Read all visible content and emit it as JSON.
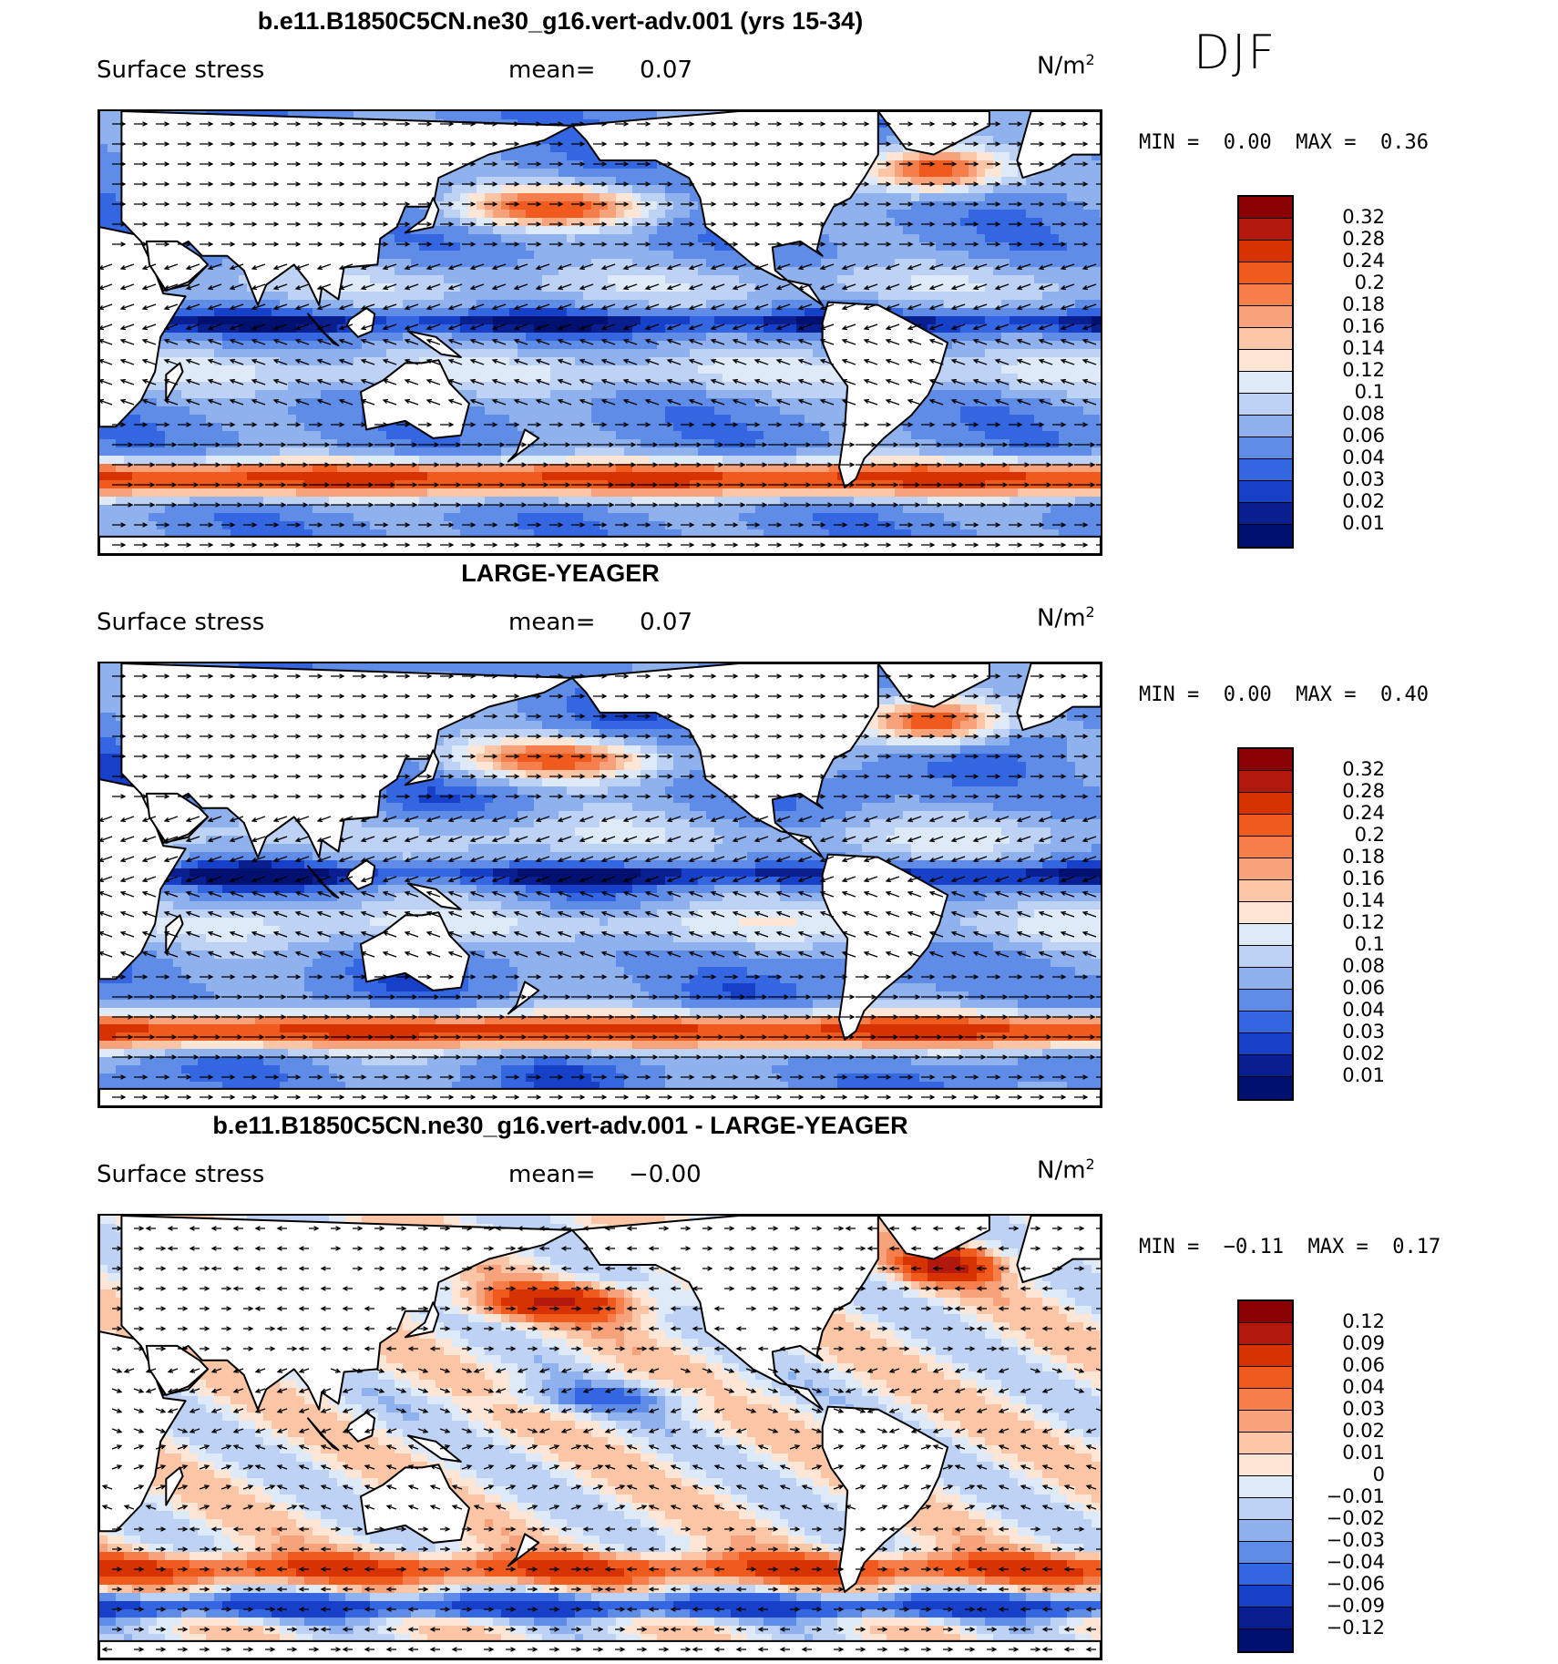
{
  "season_label": "DJF",
  "panels": [
    {
      "title": "b.e11.B1850C5CN.ne30_g16.vert-adv.001 (yrs 15-34)",
      "variable": "Surface stress",
      "mean_label": "mean=",
      "mean_value": "0.07",
      "units_base": "N/m",
      "units_exp": "2",
      "min_label": "MIN =",
      "min_value": "0.00",
      "max_label": "MAX =",
      "max_value": "0.36",
      "field_kind": "abs",
      "levels": [
        "0.32",
        "0.28",
        "0.24",
        "0.2",
        "0.18",
        "0.16",
        "0.14",
        "0.12",
        "0.1",
        "0.08",
        "0.06",
        "0.04",
        "0.03",
        "0.02",
        "0.01"
      ],
      "colors": [
        "#8b0000",
        "#b2180b",
        "#d73202",
        "#f05a1c",
        "#f67e4b",
        "#f8a27c",
        "#fbc5a6",
        "#fde6d6",
        "#dfeaf8",
        "#bdd2f4",
        "#8fb1ee",
        "#5f8ce6",
        "#3366e0",
        "#1640c8",
        "#0a1f8f",
        "#001070"
      ]
    },
    {
      "title": "LARGE-YEAGER",
      "variable": "Surface stress",
      "mean_label": "mean=",
      "mean_value": "0.07",
      "units_base": "N/m",
      "units_exp": "2",
      "min_label": "MIN =",
      "min_value": "0.00",
      "max_label": "MAX =",
      "max_value": "0.40",
      "field_kind": "abs",
      "levels": [
        "0.32",
        "0.28",
        "0.24",
        "0.2",
        "0.18",
        "0.16",
        "0.14",
        "0.12",
        "0.1",
        "0.08",
        "0.06",
        "0.04",
        "0.03",
        "0.02",
        "0.01"
      ],
      "colors": [
        "#8b0000",
        "#b2180b",
        "#d73202",
        "#f05a1c",
        "#f67e4b",
        "#f8a27c",
        "#fbc5a6",
        "#fde6d6",
        "#dfeaf8",
        "#bdd2f4",
        "#8fb1ee",
        "#5f8ce6",
        "#3366e0",
        "#1640c8",
        "#0a1f8f",
        "#001070"
      ]
    },
    {
      "title": "b.e11.B1850C5CN.ne30_g16.vert-adv.001 - LARGE-YEAGER",
      "variable": "Surface stress",
      "mean_label": "mean=",
      "mean_value": "−0.00",
      "units_base": "N/m",
      "units_exp": "2",
      "min_label": "MIN =",
      "min_value": "−0.11",
      "max_label": "MAX =",
      "max_value": "0.17",
      "field_kind": "diff",
      "levels": [
        "0.12",
        "0.09",
        "0.06",
        "0.04",
        "0.03",
        "0.02",
        "0.01",
        "0",
        "−0.01",
        "−0.02",
        "−0.03",
        "−0.04",
        "−0.06",
        "−0.09",
        "−0.12"
      ],
      "colors": [
        "#8b0000",
        "#b2180b",
        "#d73202",
        "#f05a1c",
        "#f67e4b",
        "#f8a27c",
        "#fbc5a6",
        "#fde6d6",
        "#dfeaf8",
        "#bdd2f4",
        "#8fb1ee",
        "#5f8ce6",
        "#3366e0",
        "#1640c8",
        "#0a1f8f",
        "#001070"
      ]
    }
  ]
}
